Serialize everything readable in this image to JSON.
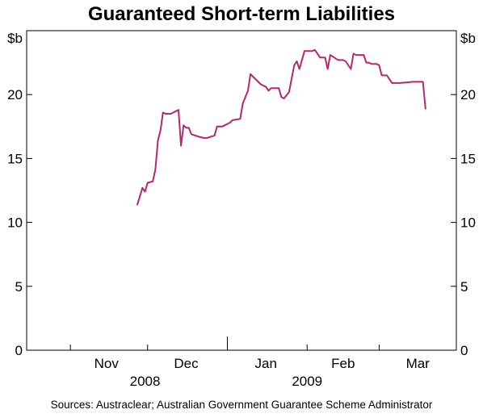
{
  "chart_data": {
    "type": "line",
    "title": "Guaranteed Short-term Liabilities",
    "y_unit_left": "$b",
    "y_unit_right": "$b",
    "ylim": [
      0,
      25
    ],
    "yticks": [
      0,
      5,
      10,
      15,
      20
    ],
    "ytick_labels": [
      "0",
      "5",
      "10",
      "15",
      "20"
    ],
    "xlim": [
      "2008-10-15",
      "2009-03-31"
    ],
    "month_labels": [
      {
        "label": "Nov",
        "date": "2008-11-15"
      },
      {
        "label": "Dec",
        "date": "2008-12-16"
      },
      {
        "label": "Jan",
        "date": "2009-01-16"
      },
      {
        "label": "Feb",
        "date": "2009-02-15"
      },
      {
        "label": "Mar",
        "date": "2009-03-16"
      }
    ],
    "month_ticks": [
      "2008-11-01",
      "2008-12-01",
      "2009-01-01",
      "2009-02-01",
      "2009-03-01"
    ],
    "year_divider": "2009-01-01",
    "year_labels": [
      {
        "label": "2008",
        "date": "2008-11-30"
      },
      {
        "label": "2009",
        "date": "2009-02-01"
      }
    ],
    "grid": false,
    "legend": "none",
    "line_color": "#b5276e",
    "series": [
      {
        "x": [
          "2008-11-27",
          "2008-11-29",
          "2008-11-30",
          "2008-12-01",
          "2008-12-03",
          "2008-12-04",
          "2008-12-05",
          "2008-12-06",
          "2008-12-07",
          "2008-12-08",
          "2008-12-10",
          "2008-12-13",
          "2008-12-14",
          "2008-12-15",
          "2008-12-16",
          "2008-12-17",
          "2008-12-18",
          "2008-12-21",
          "2008-12-23",
          "2008-12-24",
          "2008-12-27",
          "2008-12-28",
          "2008-12-30",
          "2009-01-02",
          "2009-01-03",
          "2009-01-06",
          "2009-01-07",
          "2009-01-09",
          "2009-01-10",
          "2009-01-14",
          "2009-01-16",
          "2009-01-17",
          "2009-01-18",
          "2009-01-19",
          "2009-01-21",
          "2009-01-22",
          "2009-01-23",
          "2009-01-25",
          "2009-01-27",
          "2009-01-28",
          "2009-01-29",
          "2009-01-31",
          "2009-02-03",
          "2009-02-04",
          "2009-02-06",
          "2009-02-07",
          "2009-02-08",
          "2009-02-09",
          "2009-02-10",
          "2009-02-13",
          "2009-02-14",
          "2009-02-15",
          "2009-02-16",
          "2009-02-18",
          "2009-02-19",
          "2009-02-20",
          "2009-02-23",
          "2009-02-24",
          "2009-02-25",
          "2009-02-26",
          "2009-02-28",
          "2009-03-01",
          "2009-03-02",
          "2009-03-04",
          "2009-03-05",
          "2009-03-06",
          "2009-03-07",
          "2009-03-09",
          "2009-03-14",
          "2009-03-18",
          "2009-03-19"
        ],
        "values": [
          11.4,
          12.7,
          12.4,
          13.1,
          13.2,
          14.1,
          16.4,
          17.2,
          18.6,
          18.5,
          18.5,
          18.8,
          16.0,
          17.6,
          17.4,
          17.4,
          16.9,
          16.7,
          16.6,
          16.6,
          16.8,
          17.5,
          17.5,
          17.8,
          18.0,
          18.1,
          19.3,
          20.3,
          21.6,
          20.8,
          20.6,
          20.3,
          20.5,
          20.5,
          20.5,
          19.8,
          19.7,
          20.2,
          22.3,
          22.6,
          22.0,
          23.4,
          23.4,
          23.5,
          22.9,
          22.9,
          22.9,
          22.0,
          23.1,
          22.7,
          22.7,
          22.7,
          22.6,
          22.0,
          23.2,
          23.1,
          23.1,
          22.5,
          22.5,
          22.4,
          22.4,
          22.3,
          21.5,
          21.5,
          21.2,
          20.9,
          20.9,
          20.9,
          21.0,
          21.0,
          18.9
        ]
      }
    ],
    "source": "Sources: Austraclear; Australian Government Guarantee Scheme Administrator"
  }
}
